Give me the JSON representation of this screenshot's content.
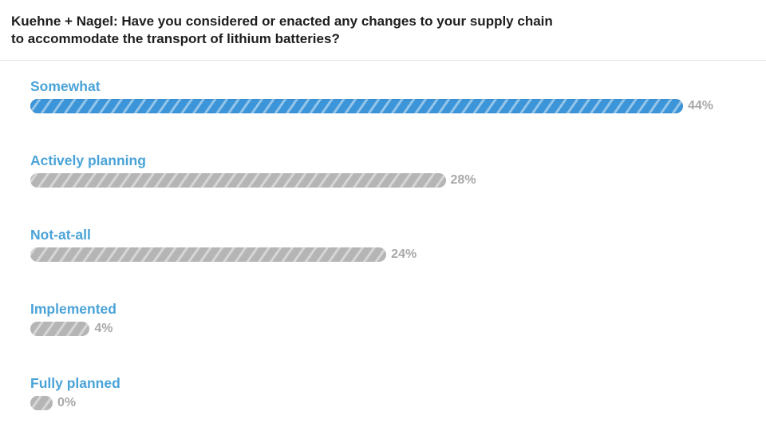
{
  "header": {
    "title_line1": "Kuehne + Nagel: Have you considered or enacted any changes to your supply chain",
    "title_line2": "to accommodate the transport of lithium batteries?"
  },
  "colors": {
    "accent": "#3d95d9",
    "label": "#4aa3d8",
    "bar_gray": "#b5b5b5",
    "percent_text": "#a8a8a8"
  },
  "chart_data": {
    "type": "bar",
    "orientation": "horizontal",
    "title": "Kuehne + Nagel: Have you considered or enacted any changes to your supply chain to accommodate the transport of lithium batteries?",
    "categories": [
      "Somewhat",
      "Actively planning",
      "Not-at-all",
      "Implemented",
      "Fully planned"
    ],
    "values": [
      44,
      28,
      24,
      4,
      0
    ],
    "value_labels": [
      "44%",
      "28%",
      "24%",
      "4%",
      "0%"
    ],
    "unit": "%",
    "xlim": [
      0,
      44
    ],
    "grid": false,
    "legend": "none"
  }
}
